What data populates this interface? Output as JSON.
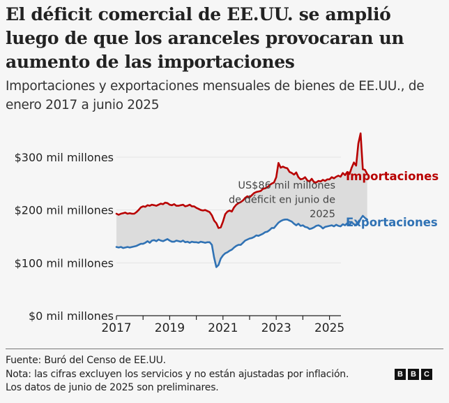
{
  "header": {
    "title": "El déficit comercial de EE.UU. se amplió luego de que los aranceles provocaran un aumento de las importaciones",
    "subtitle": "Importaciones y exportaciones mensuales de bienes de EE.UU., de enero 2017 a junio 2025"
  },
  "footer": {
    "source": "Fuente: Buró del Censo de EE.UU.",
    "note": "Nota: las cifras excluyen los servicios y no están ajustadas por inflación.",
    "prelim": "Los datos de junio de 2025 son preliminares.",
    "logo_letters": [
      "B",
      "B",
      "C"
    ]
  },
  "chart_data": {
    "type": "line",
    "title": "El déficit comercial de EE.UU. se amplió luego de que los aranceles provocaran un aumento de las importaciones",
    "subtitle": "Importaciones y exportaciones mensuales de bienes de EE.UU., de enero 2017 a junio 2025",
    "xlabel": "",
    "ylabel": "",
    "x_start": "2017-01",
    "x_end": "2025-06",
    "x_range": [
      2017.0,
      2025.45
    ],
    "ylim": [
      0,
      300
    ],
    "yticks": [
      {
        "value": 0,
        "label": "$0 mil millones"
      },
      {
        "value": 100,
        "label": "$100 mil millones"
      },
      {
        "value": 200,
        "label": "$200 mil millones"
      },
      {
        "value": 300,
        "label": "$300 mil millones"
      }
    ],
    "xticks": [
      {
        "value": 2017,
        "label": "2017"
      },
      {
        "value": 2018,
        "label": ""
      },
      {
        "value": 2019,
        "label": "2019"
      },
      {
        "value": 2020,
        "label": ""
      },
      {
        "value": 2021,
        "label": "2021"
      },
      {
        "value": 2022,
        "label": ""
      },
      {
        "value": 2023,
        "label": "2023"
      },
      {
        "value": 2024,
        "label": ""
      },
      {
        "value": 2025,
        "label": "2025"
      }
    ],
    "grid": true,
    "legend_placement": "right-inline",
    "series": [
      {
        "name": "Importaciones",
        "color": "#b80000",
        "values": [
          193,
          191,
          193,
          194,
          195,
          193,
          194,
          193,
          193,
          196,
          200,
          205,
          207,
          206,
          209,
          208,
          210,
          209,
          208,
          210,
          212,
          211,
          214,
          213,
          210,
          209,
          211,
          208,
          208,
          209,
          210,
          207,
          208,
          210,
          207,
          207,
          204,
          202,
          200,
          199,
          200,
          198,
          196,
          190,
          180,
          175,
          166,
          167,
          178,
          192,
          197,
          199,
          197,
          205,
          210,
          213,
          215,
          218,
          223,
          226,
          224,
          228,
          232,
          234,
          235,
          236,
          240,
          241,
          243,
          247,
          250,
          252,
          262,
          289,
          280,
          282,
          280,
          279,
          272,
          270,
          267,
          271,
          262,
          258,
          259,
          262,
          256,
          254,
          259,
          253,
          252,
          255,
          254,
          257,
          255,
          258,
          258,
          262,
          260,
          263,
          265,
          263,
          270,
          266,
          272,
          268,
          280,
          290,
          284,
          326,
          345,
          277,
          276,
          268
        ],
        "label": "Importaciones"
      },
      {
        "name": "Exportaciones",
        "color": "#3072b4",
        "values": [
          130,
          129,
          130,
          128,
          129,
          130,
          129,
          130,
          131,
          132,
          134,
          136,
          136,
          138,
          141,
          138,
          142,
          143,
          141,
          144,
          142,
          141,
          143,
          145,
          142,
          140,
          140,
          142,
          141,
          140,
          142,
          139,
          140,
          138,
          140,
          139,
          139,
          138,
          140,
          139,
          138,
          139,
          139,
          134,
          110,
          92,
          96,
          108,
          114,
          118,
          120,
          123,
          125,
          129,
          132,
          134,
          134,
          138,
          142,
          144,
          146,
          147,
          149,
          152,
          151,
          153,
          155,
          158,
          159,
          162,
          166,
          166,
          171,
          176,
          179,
          181,
          182,
          182,
          180,
          178,
          174,
          171,
          174,
          170,
          171,
          168,
          167,
          164,
          165,
          167,
          170,
          171,
          169,
          165,
          168,
          169,
          170,
          171,
          169,
          172,
          170,
          169,
          173,
          171,
          175,
          172,
          177,
          173,
          171,
          174,
          183,
          189,
          185,
          182
        ],
        "label": "Exportaciones"
      }
    ],
    "annotations": [
      {
        "text_lines": [
          "US$86 mil millones",
          "de déficit en junio de",
          "2025"
        ],
        "x": "2025-06",
        "deficit_value": 86
      }
    ],
    "fill_between": {
      "upper": "Importaciones",
      "lower": "Exportaciones",
      "color": "#dcdcdc"
    }
  }
}
